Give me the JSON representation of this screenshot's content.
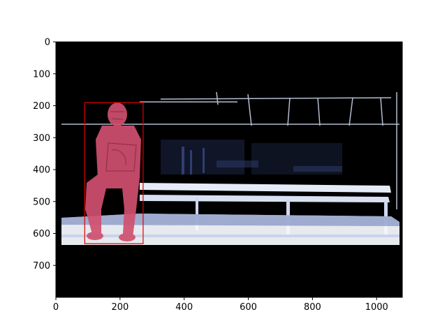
{
  "figure": {
    "background": "#ffffff",
    "image_background": "#000000",
    "image_extent": {
      "width": 1080,
      "height": 800
    },
    "x_ticks": [
      0,
      200,
      400,
      600,
      800,
      1000
    ],
    "y_ticks": [
      0,
      100,
      200,
      300,
      400,
      500,
      600,
      700
    ],
    "x_tick_labels": [
      "0",
      "200",
      "400",
      "600",
      "800",
      "1000"
    ],
    "y_tick_labels": [
      "0",
      "100",
      "200",
      "300",
      "400",
      "500",
      "600",
      "700"
    ]
  },
  "scene": {
    "subject": "person seated on a bench",
    "mask_color": "#d0506f",
    "bench_color": "#e6ecf7",
    "highlight_color": "#7f8fc0"
  },
  "bounding_box": {
    "x_min": 90,
    "y_min": 190,
    "x_max": 272,
    "y_max": 632,
    "color": "#e00000"
  }
}
